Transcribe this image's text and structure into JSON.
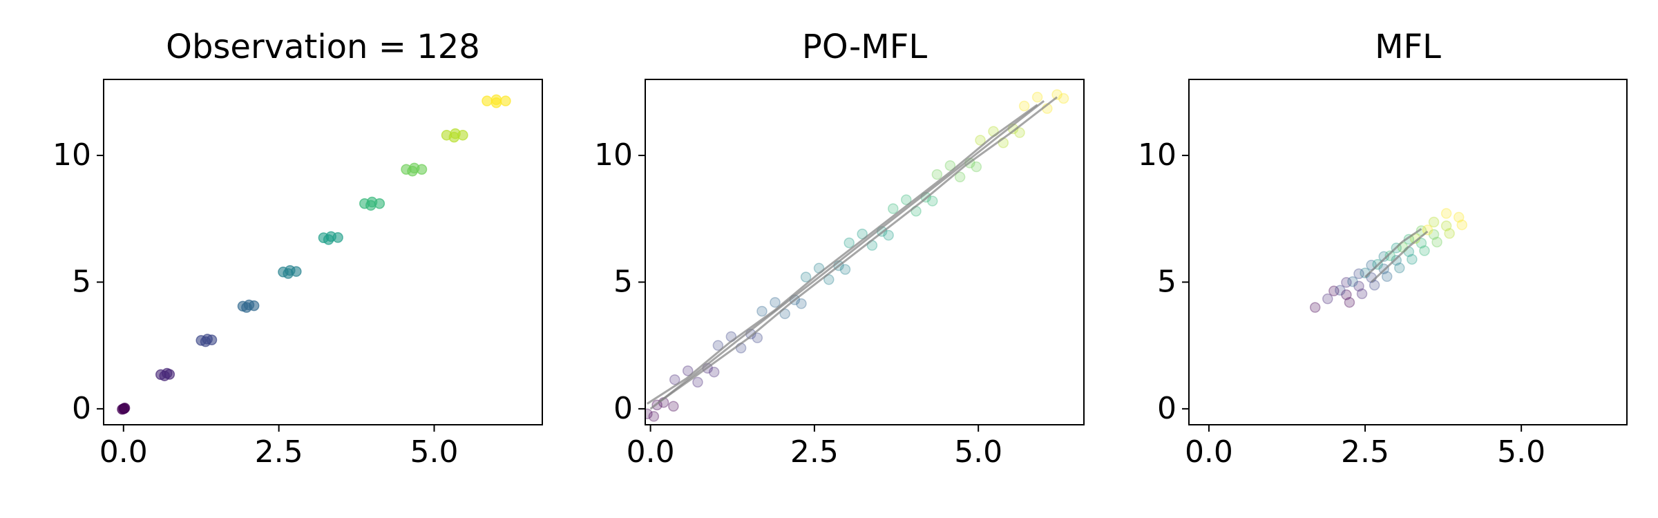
{
  "chart_data": [
    {
      "type": "scatter",
      "title": "Observation = 128",
      "alpha": 0.6,
      "xlim": [
        -0.32,
        6.74
      ],
      "ylim": [
        -0.63,
        13.0
      ],
      "xticks": [
        {
          "value": 0,
          "label": "0.0"
        },
        2.5,
        {
          "value": 5,
          "label": "5.0"
        }
      ],
      "yticks": [
        0,
        5,
        10
      ],
      "series": [
        {
          "color": "#440154",
          "x": [
            0,
            0.02,
            -0.02,
            0.01
          ],
          "y": [
            0,
            0.03,
            -0.02,
            0.01
          ]
        },
        {
          "color": "#482878",
          "x": [
            0.6,
            0.7,
            0.66,
            0.74
          ],
          "y": [
            1.35,
            1.4,
            1.3,
            1.36
          ]
        },
        {
          "color": "#3e4989",
          "x": [
            1.25,
            1.35,
            1.32,
            1.42
          ],
          "y": [
            2.7,
            2.75,
            2.65,
            2.72
          ]
        },
        {
          "color": "#31688e",
          "x": [
            1.92,
            2.02,
            1.98,
            2.1
          ],
          "y": [
            4.05,
            4.1,
            4.0,
            4.07
          ]
        },
        {
          "color": "#26828e",
          "x": [
            2.57,
            2.68,
            2.65,
            2.78
          ],
          "y": [
            5.4,
            5.46,
            5.34,
            5.42
          ]
        },
        {
          "color": "#1f9e89",
          "x": [
            3.22,
            3.34,
            3.3,
            3.45
          ],
          "y": [
            6.75,
            6.8,
            6.68,
            6.76
          ]
        },
        {
          "color": "#35b779",
          "x": [
            3.88,
            4.0,
            3.98,
            4.12
          ],
          "y": [
            8.1,
            8.16,
            8.03,
            8.1
          ]
        },
        {
          "color": "#6ece58",
          "x": [
            4.55,
            4.68,
            4.65,
            4.8
          ],
          "y": [
            9.45,
            9.5,
            9.38,
            9.45
          ]
        },
        {
          "color": "#b5de2b",
          "x": [
            5.2,
            5.34,
            5.32,
            5.46
          ],
          "y": [
            10.8,
            10.86,
            10.72,
            10.8
          ]
        },
        {
          "color": "#fde725",
          "x": [
            5.85,
            6.0,
            6.0,
            6.15
          ],
          "y": [
            12.15,
            12.2,
            12.08,
            12.15
          ]
        }
      ],
      "lines": []
    },
    {
      "type": "scatter",
      "title": "PO-MFL",
      "alpha": 0.25,
      "xlim": [
        -0.08,
        6.61
      ],
      "ylim": [
        -0.63,
        13.0
      ],
      "xticks": [
        {
          "value": 0,
          "label": "0.0"
        },
        2.5,
        {
          "value": 5,
          "label": "5.0"
        }
      ],
      "yticks": [
        0,
        5,
        10
      ],
      "series": [
        {
          "color": "#440154",
          "x": [
            -0.05,
            0.2,
            0.05,
            0.35,
            0.1
          ],
          "y": [
            -0.2,
            0.25,
            -0.3,
            0.1,
            0.15
          ]
        },
        {
          "color": "#482878",
          "x": [
            0.37,
            0.87,
            0.72,
            0.97,
            0.57
          ],
          "y": [
            1.15,
            1.6,
            1.05,
            1.45,
            1.5
          ]
        },
        {
          "color": "#3e4989",
          "x": [
            1.03,
            1.53,
            1.38,
            1.63,
            1.23
          ],
          "y": [
            2.5,
            2.95,
            2.4,
            2.8,
            2.85
          ]
        },
        {
          "color": "#31688e",
          "x": [
            1.7,
            2.2,
            2.05,
            2.3,
            1.9
          ],
          "y": [
            3.85,
            4.3,
            3.75,
            4.15,
            4.2
          ]
        },
        {
          "color": "#26828e",
          "x": [
            2.37,
            2.87,
            2.72,
            2.97,
            2.57
          ],
          "y": [
            5.2,
            5.65,
            5.1,
            5.5,
            5.55
          ]
        },
        {
          "color": "#1f9e89",
          "x": [
            3.03,
            3.53,
            3.38,
            3.63,
            3.23
          ],
          "y": [
            6.55,
            7.0,
            6.45,
            6.85,
            6.9
          ]
        },
        {
          "color": "#35b779",
          "x": [
            3.7,
            4.2,
            4.05,
            4.3,
            3.9
          ],
          "y": [
            7.9,
            8.35,
            7.8,
            8.2,
            8.25
          ]
        },
        {
          "color": "#6ece58",
          "x": [
            4.37,
            4.87,
            4.72,
            4.97,
            4.57
          ],
          "y": [
            9.25,
            9.7,
            9.15,
            9.55,
            9.6
          ]
        },
        {
          "color": "#b5de2b",
          "x": [
            5.03,
            5.53,
            5.38,
            5.63,
            5.23
          ],
          "y": [
            10.6,
            11.05,
            10.5,
            10.9,
            10.95
          ]
        },
        {
          "color": "#fde725",
          "x": [
            5.7,
            6.2,
            6.05,
            6.3,
            5.9
          ],
          "y": [
            11.95,
            12.4,
            11.85,
            12.25,
            12.3
          ]
        }
      ],
      "lines": [
        {
          "color": "#808080",
          "x": [
            0,
            0.67,
            1.33,
            2,
            2.67,
            3.33,
            4,
            4.67,
            5.33,
            6
          ],
          "y": [
            0,
            1.35,
            2.7,
            4.05,
            5.4,
            6.75,
            8.1,
            9.45,
            10.8,
            12.15
          ]
        },
        {
          "color": "#808080",
          "x": [
            0.15,
            0.8,
            1.5,
            2.15,
            2.8,
            3.5,
            4.15,
            4.8,
            5.5,
            6.2
          ],
          "y": [
            0.3,
            1.5,
            2.8,
            4.2,
            5.5,
            6.9,
            8.2,
            9.6,
            10.9,
            12.3
          ]
        },
        {
          "color": "#808080",
          "x": [
            -0.05,
            0.55,
            1.2,
            1.9,
            2.55,
            3.2,
            3.9,
            4.55,
            5.2,
            5.9
          ],
          "y": [
            0.2,
            1.2,
            2.6,
            3.9,
            5.3,
            6.6,
            8.0,
            9.3,
            10.7,
            12.0
          ]
        }
      ]
    },
    {
      "type": "scatter",
      "title": "MFL",
      "alpha": 0.25,
      "xlim": [
        -0.32,
        6.69
      ],
      "ylim": [
        -0.63,
        13.0
      ],
      "xticks": [
        {
          "value": 0,
          "label": "0.0"
        },
        2.5,
        {
          "value": 5,
          "label": "5.0"
        }
      ],
      "yticks": [
        0,
        5,
        10
      ],
      "series": [
        {
          "color": "#440154",
          "x": [
            1.7,
            2.2,
            2.0,
            2.25
          ],
          "y": [
            4.0,
            4.5,
            4.65,
            4.2
          ]
        },
        {
          "color": "#482878",
          "x": [
            1.9,
            2.4,
            2.2,
            2.45
          ],
          "y": [
            4.34,
            4.84,
            4.99,
            4.54
          ]
        },
        {
          "color": "#3e4989",
          "x": [
            2.1,
            2.6,
            2.4,
            2.65
          ],
          "y": [
            4.68,
            5.18,
            5.33,
            4.88
          ]
        },
        {
          "color": "#31688e",
          "x": [
            2.3,
            2.8,
            2.6,
            2.85
          ],
          "y": [
            5.02,
            5.52,
            5.67,
            5.22
          ]
        },
        {
          "color": "#26828e",
          "x": [
            2.5,
            3.0,
            2.8,
            3.05
          ],
          "y": [
            5.36,
            5.86,
            6.01,
            5.56
          ]
        },
        {
          "color": "#1f9e89",
          "x": [
            2.7,
            3.2,
            3.0,
            3.25
          ],
          "y": [
            5.7,
            6.2,
            6.35,
            5.9
          ]
        },
        {
          "color": "#35b779",
          "x": [
            2.9,
            3.4,
            3.2,
            3.45
          ],
          "y": [
            6.04,
            6.54,
            6.69,
            6.24
          ]
        },
        {
          "color": "#6ece58",
          "x": [
            3.1,
            3.6,
            3.4,
            3.65
          ],
          "y": [
            6.38,
            6.88,
            7.03,
            6.58
          ]
        },
        {
          "color": "#b5de2b",
          "x": [
            3.3,
            3.8,
            3.6,
            3.85
          ],
          "y": [
            6.72,
            7.22,
            7.37,
            6.92
          ]
        },
        {
          "color": "#fde725",
          "x": [
            3.5,
            4.0,
            3.8,
            4.05
          ],
          "y": [
            7.06,
            7.56,
            7.71,
            7.26
          ]
        }
      ],
      "lines": [
        {
          "color": "#808080",
          "x": [
            2.5,
            2.8,
            3.1,
            3.4
          ],
          "y": [
            5.2,
            5.9,
            6.6,
            7.1
          ]
        },
        {
          "color": "#808080",
          "x": [
            2.6,
            2.9,
            3.2,
            3.5
          ],
          "y": [
            5.0,
            5.7,
            6.4,
            7.0
          ]
        }
      ]
    }
  ]
}
